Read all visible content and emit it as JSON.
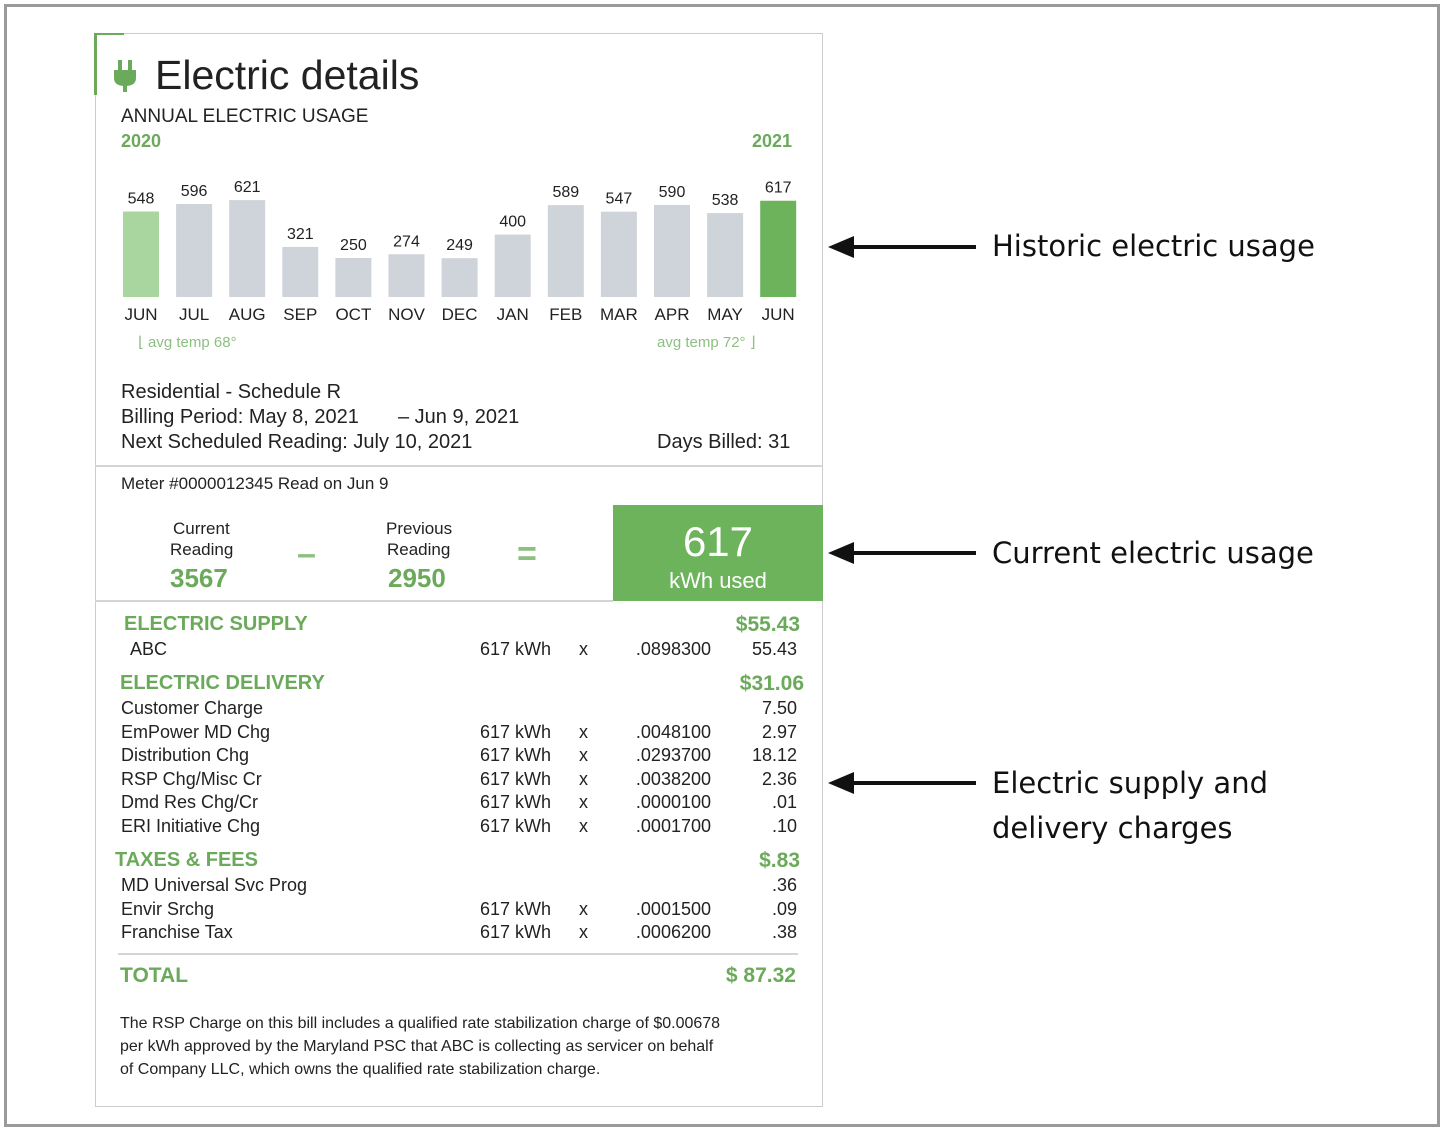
{
  "title": "Electric details",
  "usage": {
    "heading": "ANNUAL ELECTRIC USAGE",
    "year_start": "2020",
    "year_end": "2021",
    "categories": [
      "JUN",
      "JUL",
      "AUG",
      "SEP",
      "OCT",
      "NOV",
      "DEC",
      "JAN",
      "FEB",
      "MAR",
      "APR",
      "MAY",
      "JUN"
    ],
    "values": [
      548,
      596,
      621,
      321,
      250,
      274,
      249,
      400,
      589,
      547,
      590,
      538,
      617
    ],
    "temp_start": "avg temp 68°",
    "temp_end": "avg temp 72°"
  },
  "billing": {
    "schedule": "Residential - Schedule R",
    "period": "Billing Period: May 8, 2021",
    "period_end": "– Jun 9, 2021",
    "next_reading": "Next Scheduled Reading: July 10, 2021",
    "days_billed": "Days Billed: 31"
  },
  "meter": {
    "label": "Meter #0000012345 Read on Jun 9",
    "current_label": [
      "Current",
      "Reading"
    ],
    "current_value": "3567",
    "minus": "–",
    "previous_label": [
      "Previous",
      "Reading"
    ],
    "previous_value": "2950",
    "equals": "=",
    "used_value": "617",
    "used_unit": "kWh used"
  },
  "charges": [
    {
      "heading": "ELECTRIC SUPPLY",
      "total": "$55.43",
      "rows": [
        {
          "name": "ABC",
          "kwh": "617 kWh",
          "x": "x",
          "rate": ".0898300",
          "amount": "55.43"
        }
      ]
    },
    {
      "heading": "ELECTRIC DELIVERY",
      "total": "$31.06",
      "rows": [
        {
          "name": "Customer Charge",
          "amount": "7.50"
        },
        {
          "name": "EmPower MD Chg",
          "kwh": "617 kWh",
          "x": "x",
          "rate": ".0048100",
          "amount": "2.97"
        },
        {
          "name": "Distribution Chg",
          "kwh": "617 kWh",
          "x": "x",
          "rate": ".0293700",
          "amount": "18.12"
        },
        {
          "name": "RSP Chg/Misc Cr",
          "kwh": "617 kWh",
          "x": "x",
          "rate": ".0038200",
          "amount": "2.36"
        },
        {
          "name": "Dmd Res Chg/Cr",
          "kwh": "617 kWh",
          "x": "x",
          "rate": ".0000100",
          "amount": ".01"
        },
        {
          "name": "ERI Initiative Chg",
          "kwh": "617 kWh",
          "x": "x",
          "rate": ".0001700",
          "amount": ".10"
        }
      ]
    },
    {
      "heading": "TAXES & FEES",
      "total": "$.83",
      "rows": [
        {
          "name": "MD Universal Svc Prog",
          "amount": ".36"
        },
        {
          "name": "Envir Srchg",
          "kwh": "617 kWh",
          "x": "x",
          "rate": ".0001500",
          "amount": ".09"
        },
        {
          "name": "Franchise Tax",
          "kwh": "617 kWh",
          "x": "x",
          "rate": ".0006200",
          "amount": ".38"
        }
      ]
    }
  ],
  "total": {
    "label": "TOTAL",
    "value": "$ 87.32"
  },
  "footnote": [
    "The RSP Charge on this bill includes a qualified rate stabilization charge of $0.00678",
    "per kWh approved by the Maryland PSC that ABC is collecting as servicer on behalf",
    "of Company LLC, which owns the qualified rate stabilization charge."
  ],
  "annotations": {
    "historic": "Historic electric usage",
    "current": "Current electric usage",
    "charges": [
      "Electric supply and",
      "delivery charges"
    ]
  }
}
